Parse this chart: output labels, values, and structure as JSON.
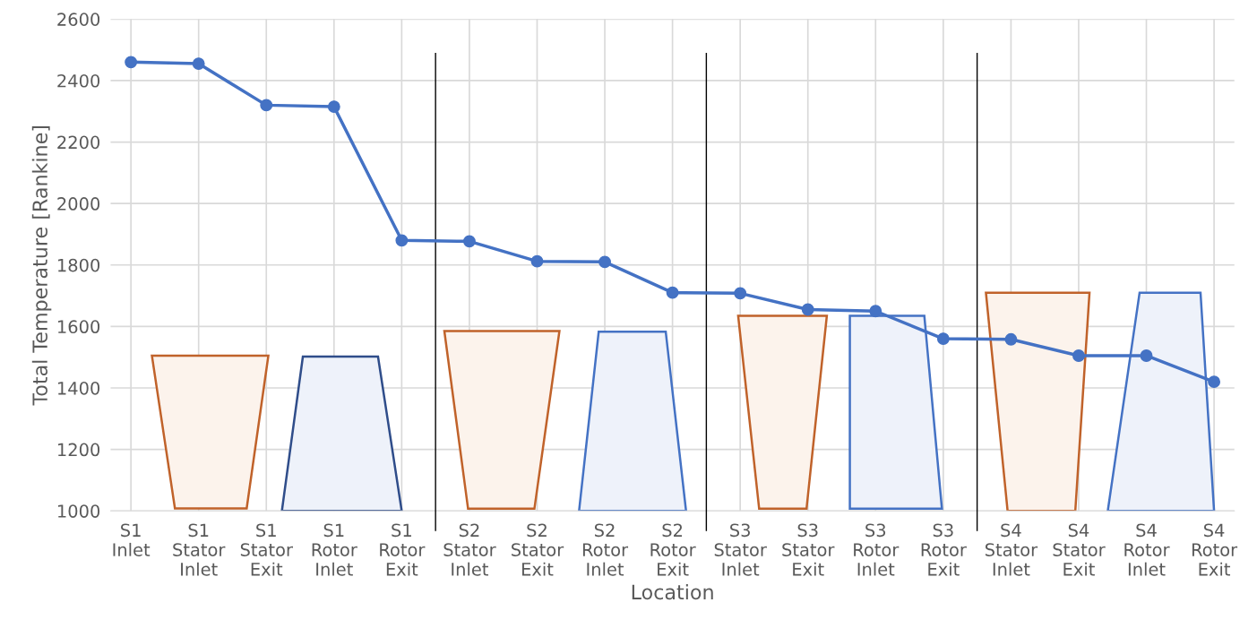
{
  "chart_data": {
    "type": "line",
    "xlabel": "Location",
    "ylabel": "Total Temperature [Rankine]",
    "categories": [
      "S1\nInlet",
      "S1\nStator\nInlet",
      "S1\nStator\nExit",
      "S1\nRotor\nInlet",
      "S1\nRotor\nExit",
      "S2\nStator\nInlet",
      "S2\nStator\nExit",
      "S2\nRotor\nInlet",
      "S2\nRotor\nExit",
      "S3\nStator\nInlet",
      "S3\nStator\nExit",
      "S3\nRotor\nInlet",
      "S3\nRotor\nExit",
      "S4\nStator\nInlet",
      "S4\nStator\nExit",
      "S4\nRotor\nInlet",
      "S4\nRotor\nExit"
    ],
    "series": [
      {
        "color": "#4472c4",
        "values": [
          2460,
          2455,
          2320,
          2315,
          1880,
          1877,
          1812,
          1810,
          1710,
          1708,
          1655,
          1650,
          1560,
          1558,
          1505,
          1505,
          1420
        ]
      }
    ],
    "ylim": [
      1000,
      2600
    ],
    "yticks": [
      1000,
      1200,
      1400,
      1600,
      1800,
      2000,
      2200,
      2400,
      2600
    ],
    "grid": true,
    "marker": "circle",
    "line_style": "solid",
    "legend": false
  }
}
